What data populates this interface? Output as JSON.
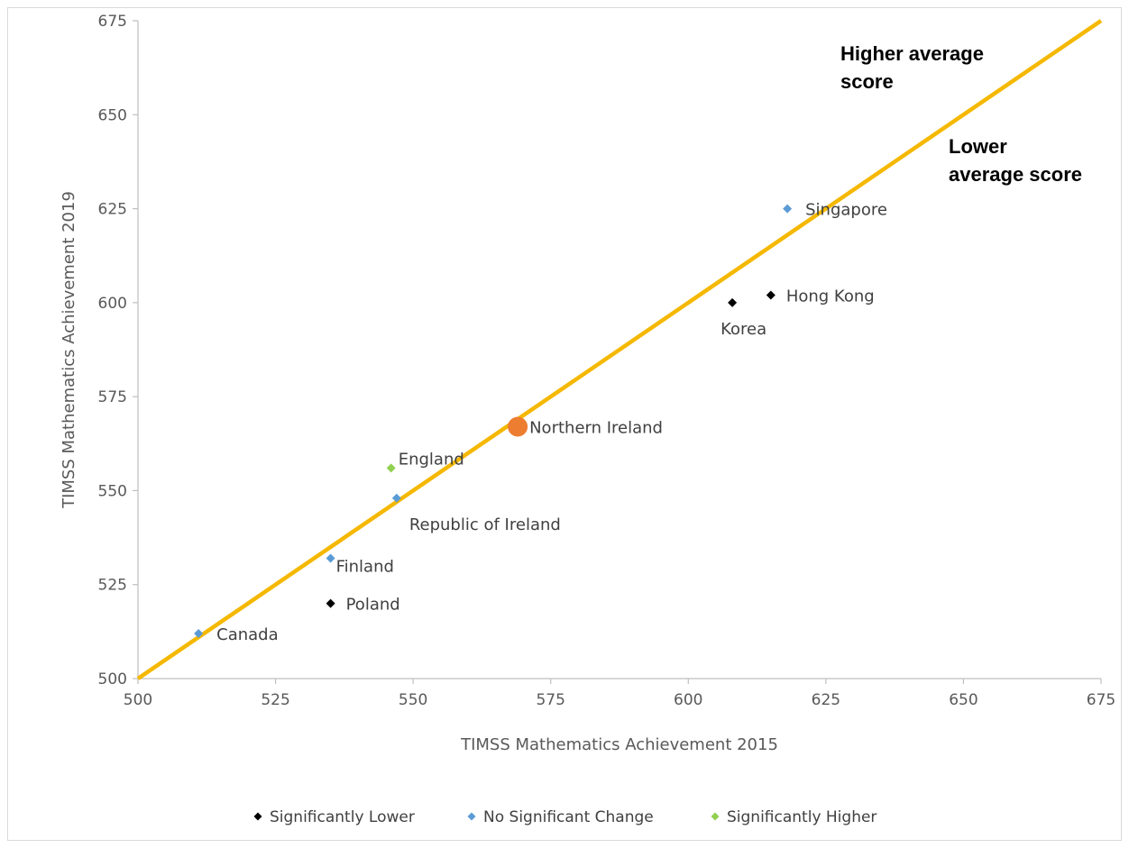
{
  "chart_data": {
    "type": "scatter",
    "title": "",
    "xlabel": "TIMSS Mathematics Achievement  2015",
    "ylabel": "TIMSS Mathematics Achievement  2019",
    "xlim": [
      500,
      675
    ],
    "ylim": [
      500,
      675
    ],
    "xticks": [
      500,
      525,
      550,
      575,
      600,
      625,
      650,
      675
    ],
    "yticks": [
      500,
      525,
      550,
      575,
      600,
      625,
      650,
      675
    ],
    "grid": false,
    "legend_position": "bottom",
    "reference_line": {
      "from": [
        500,
        500
      ],
      "to": [
        675,
        675
      ],
      "color": "#f5b800"
    },
    "region_labels": [
      {
        "lines": [
          "Higher average",
          "score"
        ]
      },
      {
        "lines": [
          "Lower",
          "average score"
        ]
      }
    ],
    "series": [
      {
        "name": "Significantly Lower",
        "color": "#000000",
        "points": [
          {
            "label": "Korea",
            "x": 608,
            "y": 600
          },
          {
            "label": "Hong Kong",
            "x": 615,
            "y": 602
          },
          {
            "label": "Poland",
            "x": 535,
            "y": 520
          }
        ]
      },
      {
        "name": "No Significant Change",
        "color": "#5b9bd5",
        "points": [
          {
            "label": "Singapore",
            "x": 618,
            "y": 625
          },
          {
            "label": "Republic of Ireland",
            "x": 547,
            "y": 548
          },
          {
            "label": "Finland",
            "x": 535,
            "y": 532
          },
          {
            "label": "Canada",
            "x": 511,
            "y": 512
          }
        ]
      },
      {
        "name": "Significantly Higher",
        "color": "#92d050",
        "points": [
          {
            "label": "England",
            "x": 546,
            "y": 556
          }
        ]
      }
    ],
    "highlight_points": [
      {
        "label": "Northern Ireland",
        "x": 569,
        "y": 567,
        "color": "#ed7d31"
      }
    ]
  }
}
